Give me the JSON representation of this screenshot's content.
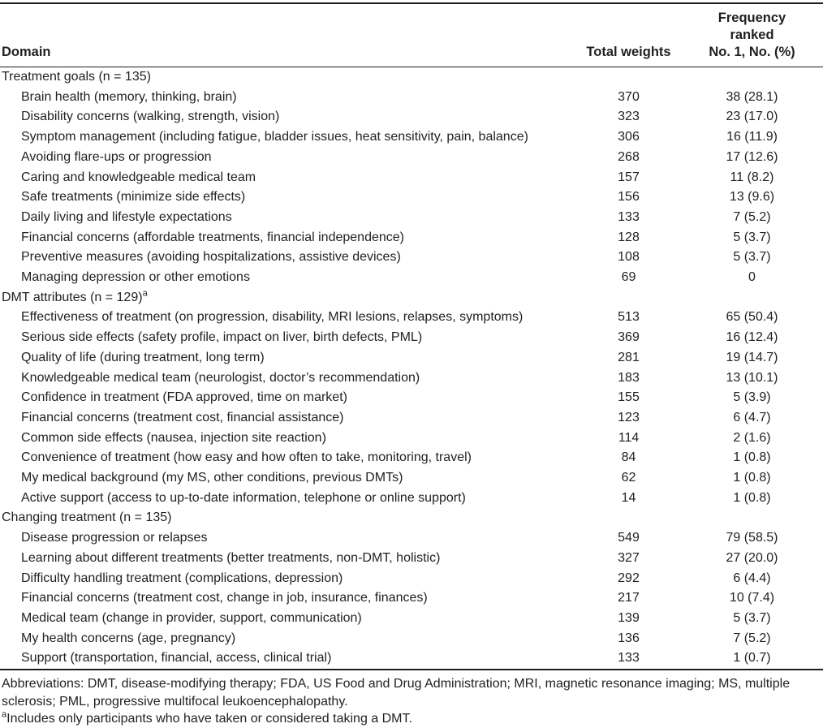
{
  "header": {
    "domain": "Domain",
    "total_weights": "Total weights",
    "frequency_line1": "Frequency ranked",
    "frequency_line2": "No. 1, No. (%)"
  },
  "table": {
    "sections": [
      {
        "title": "Treatment goals (n = 135)",
        "sup": "",
        "rows": [
          {
            "label": "Brain health (memory, thinking, brain)",
            "weights": "370",
            "freq": "38 (28.1)"
          },
          {
            "label": "Disability concerns (walking, strength, vision)",
            "weights": "323",
            "freq": "23 (17.0)"
          },
          {
            "label": "Symptom management (including fatigue, bladder issues, heat sensitivity, pain, balance)",
            "weights": "306",
            "freq": "16 (11.9)"
          },
          {
            "label": "Avoiding flare-ups or progression",
            "weights": "268",
            "freq": "17 (12.6)"
          },
          {
            "label": "Caring and knowledgeable medical team",
            "weights": "157",
            "freq": "11 (8.2)"
          },
          {
            "label": "Safe treatments (minimize side effects)",
            "weights": "156",
            "freq": "13 (9.6)"
          },
          {
            "label": "Daily living and lifestyle expectations",
            "weights": "133",
            "freq": "7 (5.2)"
          },
          {
            "label": "Financial concerns (affordable treatments, financial independence)",
            "weights": "128",
            "freq": "5 (3.7)"
          },
          {
            "label": "Preventive measures (avoiding hospitalizations, assistive devices)",
            "weights": "108",
            "freq": "5 (3.7)"
          },
          {
            "label": "Managing depression or other emotions",
            "weights": "69",
            "freq": "0"
          }
        ]
      },
      {
        "title": "DMT attributes (n = 129)",
        "sup": "a",
        "rows": [
          {
            "label": "Effectiveness of treatment (on progression, disability, MRI lesions, relapses, symptoms)",
            "weights": "513",
            "freq": "65 (50.4)"
          },
          {
            "label": "Serious side effects (safety profile, impact on liver, birth defects, PML)",
            "weights": "369",
            "freq": "16 (12.4)"
          },
          {
            "label": "Quality of life (during treatment, long term)",
            "weights": "281",
            "freq": "19 (14.7)"
          },
          {
            "label": "Knowledgeable medical team (neurologist, doctor’s recommendation)",
            "weights": "183",
            "freq": "13 (10.1)"
          },
          {
            "label": "Confidence in treatment (FDA approved, time on market)",
            "weights": "155",
            "freq": "5 (3.9)"
          },
          {
            "label": "Financial concerns (treatment cost, financial assistance)",
            "weights": "123",
            "freq": "6 (4.7)"
          },
          {
            "label": "Common side effects (nausea, injection site reaction)",
            "weights": "114",
            "freq": "2 (1.6)"
          },
          {
            "label": "Convenience of treatment (how easy and how often to take, monitoring, travel)",
            "weights": "84",
            "freq": "1 (0.8)"
          },
          {
            "label": "My medical background (my MS, other conditions, previous DMTs)",
            "weights": "62",
            "freq": "1 (0.8)"
          },
          {
            "label": "Active support (access to up-to-date information, telephone or online support)",
            "weights": "14",
            "freq": "1 (0.8)"
          }
        ]
      },
      {
        "title": "Changing treatment (n = 135)",
        "sup": "",
        "rows": [
          {
            "label": "Disease progression or relapses",
            "weights": "549",
            "freq": "79 (58.5)"
          },
          {
            "label": "Learning about different treatments (better treatments, non-DMT, holistic)",
            "weights": "327",
            "freq": "27 (20.0)"
          },
          {
            "label": "Difficulty handling treatment (complications, depression)",
            "weights": "292",
            "freq": "6 (4.4)"
          },
          {
            "label": "Financial concerns (treatment cost, change in job, insurance, finances)",
            "weights": "217",
            "freq": "10 (7.4)"
          },
          {
            "label": "Medical team (change in provider, support, communication)",
            "weights": "139",
            "freq": "5 (3.7)"
          },
          {
            "label": "My health concerns (age, pregnancy)",
            "weights": "136",
            "freq": "7 (5.2)"
          },
          {
            "label": "Support (transportation, financial, access, clinical trial)",
            "weights": "133",
            "freq": "1 (0.7)"
          }
        ]
      }
    ]
  },
  "footnotes": {
    "abbreviations": "Abbreviations: DMT, disease-modifying therapy; FDA, US Food and Drug Administration; MRI, magnetic resonance imaging; MS, multiple sclerosis; PML, progressive multifocal leukoencephalopathy.",
    "note_a_marker": "a",
    "note_a_text": "Includes only participants who have taken or considered taking a DMT."
  },
  "colors": {
    "text": "#211f1f",
    "rule": "#1c1c1c",
    "background": "#ffffff"
  }
}
